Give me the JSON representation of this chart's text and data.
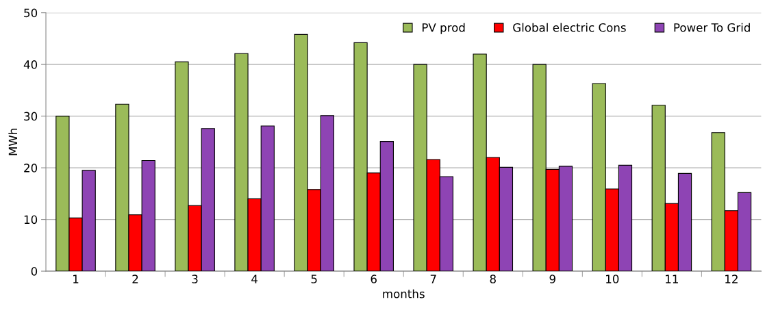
{
  "chart_data": {
    "type": "bar",
    "xlabel": "months",
    "ylabel": "MWh",
    "categories": [
      "1",
      "2",
      "3",
      "4",
      "5",
      "6",
      "7",
      "8",
      "9",
      "10",
      "11",
      "12"
    ],
    "series": [
      {
        "name": "PV prod",
        "color": "#9bbb59",
        "values": [
          30,
          32.3,
          40.5,
          42.1,
          45.8,
          44.2,
          40,
          42,
          40,
          36.3,
          32.1,
          26.8
        ]
      },
      {
        "name": "Global electric Cons",
        "color": "#ff0000",
        "values": [
          10.3,
          10.9,
          12.7,
          14,
          15.8,
          19,
          21.6,
          22,
          19.7,
          15.9,
          13.1,
          11.7
        ]
      },
      {
        "name": "Power To Grid",
        "color": "#8e44b4",
        "values": [
          19.5,
          21.4,
          27.6,
          28.1,
          30.1,
          25.1,
          18.3,
          20.1,
          20.3,
          20.5,
          18.9,
          15.2
        ]
      }
    ],
    "ylim": [
      0,
      50
    ],
    "yticks": [
      0,
      10,
      20,
      30,
      40,
      50
    ],
    "grid": "y",
    "legend": "top right"
  }
}
